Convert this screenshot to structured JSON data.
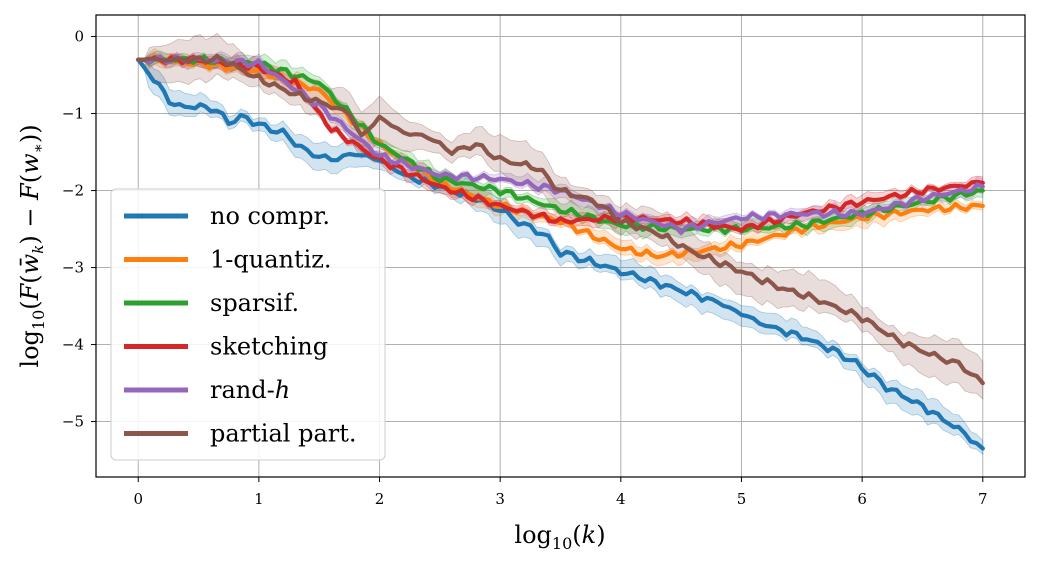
{
  "chart_data": {
    "type": "line",
    "xlabel": "log10(k)",
    "ylabel": "log10(F(w̄k) − F(w*))",
    "xlim": [
      -0.35,
      7.35
    ],
    "ylim": [
      -5.72,
      0.28
    ],
    "xticks": [
      0,
      1,
      2,
      3,
      4,
      5,
      6,
      7
    ],
    "yticks": [
      0,
      -1,
      -2,
      -3,
      -4,
      -5
    ],
    "grid": true,
    "legend_position": "lower-left",
    "series": [
      {
        "name": "no compr.",
        "color": "#1f77b4",
        "x": [
          0,
          0.3,
          0.6,
          0.75,
          0.9,
          1.0,
          1.2,
          1.4,
          1.6,
          1.8,
          2.0,
          2.2,
          2.5,
          2.8,
          3.0,
          3.2,
          3.35,
          3.5,
          3.7,
          4.0,
          4.2,
          4.5,
          4.8,
          5.0,
          5.2,
          5.5,
          5.8,
          6.0,
          6.2,
          6.5,
          6.8,
          7.0
        ],
        "y": [
          -0.3,
          -0.9,
          -0.92,
          -1.1,
          -1.05,
          -1.15,
          -1.25,
          -1.5,
          -1.6,
          -1.52,
          -1.6,
          -1.8,
          -1.95,
          -2.1,
          -2.25,
          -2.45,
          -2.55,
          -2.8,
          -2.9,
          -3.05,
          -3.15,
          -3.3,
          -3.45,
          -3.6,
          -3.75,
          -3.9,
          -4.1,
          -4.3,
          -4.55,
          -4.8,
          -5.1,
          -5.35
        ]
      },
      {
        "name": "1-quantiz.",
        "color": "#ff7f0e",
        "x": [
          0,
          0.5,
          1.0,
          1.5,
          2.0,
          2.5,
          3.0,
          3.5,
          4.0,
          4.3,
          4.6,
          5.0,
          5.5,
          6.0,
          6.5,
          7.0
        ],
        "y": [
          -0.3,
          -0.35,
          -0.45,
          -0.7,
          -1.4,
          -1.9,
          -2.2,
          -2.4,
          -2.75,
          -2.85,
          -2.8,
          -2.7,
          -2.5,
          -2.35,
          -2.25,
          -2.2
        ]
      },
      {
        "name": "sparsif.",
        "color": "#2ca02c",
        "x": [
          0,
          0.5,
          1.0,
          1.5,
          2.0,
          2.5,
          3.0,
          3.5,
          4.0,
          4.5,
          5.0,
          5.5,
          6.0,
          6.5,
          7.0
        ],
        "y": [
          -0.3,
          -0.3,
          -0.35,
          -0.6,
          -1.4,
          -1.85,
          -2.0,
          -2.25,
          -2.45,
          -2.5,
          -2.5,
          -2.45,
          -2.3,
          -2.15,
          -2.0
        ]
      },
      {
        "name": "sketching",
        "color": "#d62728",
        "x": [
          0,
          0.5,
          1.0,
          1.3,
          1.6,
          2.0,
          2.5,
          3.0,
          3.5,
          4.0,
          4.5,
          5.0,
          5.5,
          6.0,
          6.5,
          7.0
        ],
        "y": [
          -0.3,
          -0.3,
          -0.4,
          -0.6,
          -1.2,
          -1.6,
          -1.95,
          -2.2,
          -2.4,
          -2.35,
          -2.4,
          -2.5,
          -2.3,
          -2.15,
          -2.0,
          -1.9
        ]
      },
      {
        "name": "rand-h",
        "color": "#9467bd",
        "x": [
          0,
          0.5,
          1.0,
          1.5,
          2.0,
          2.5,
          3.0,
          3.5,
          4.0,
          4.5,
          5.0,
          5.5,
          6.0,
          6.5,
          7.0
        ],
        "y": [
          -0.3,
          -0.3,
          -0.35,
          -0.9,
          -1.55,
          -1.8,
          -1.85,
          -2.0,
          -2.3,
          -2.5,
          -2.35,
          -2.3,
          -2.3,
          -2.1,
          -1.95
        ]
      },
      {
        "name": "partial part.",
        "color": "#8c564b",
        "x": [
          0,
          0.7,
          1.0,
          1.3,
          1.6,
          1.75,
          1.85,
          2.0,
          2.2,
          2.4,
          2.6,
          2.8,
          3.0,
          3.3,
          3.5,
          3.8,
          4.0,
          4.3,
          4.6,
          5.0,
          5.3,
          5.6,
          6.0,
          6.3,
          6.6,
          6.8,
          7.0
        ],
        "y": [
          -0.3,
          -0.3,
          -0.55,
          -0.75,
          -0.9,
          -1.0,
          -1.3,
          -1.05,
          -1.25,
          -1.3,
          -1.5,
          -1.4,
          -1.6,
          -1.7,
          -2.0,
          -2.15,
          -2.4,
          -2.55,
          -2.8,
          -3.05,
          -3.25,
          -3.4,
          -3.65,
          -3.95,
          -4.15,
          -4.25,
          -4.5
        ]
      }
    ]
  }
}
